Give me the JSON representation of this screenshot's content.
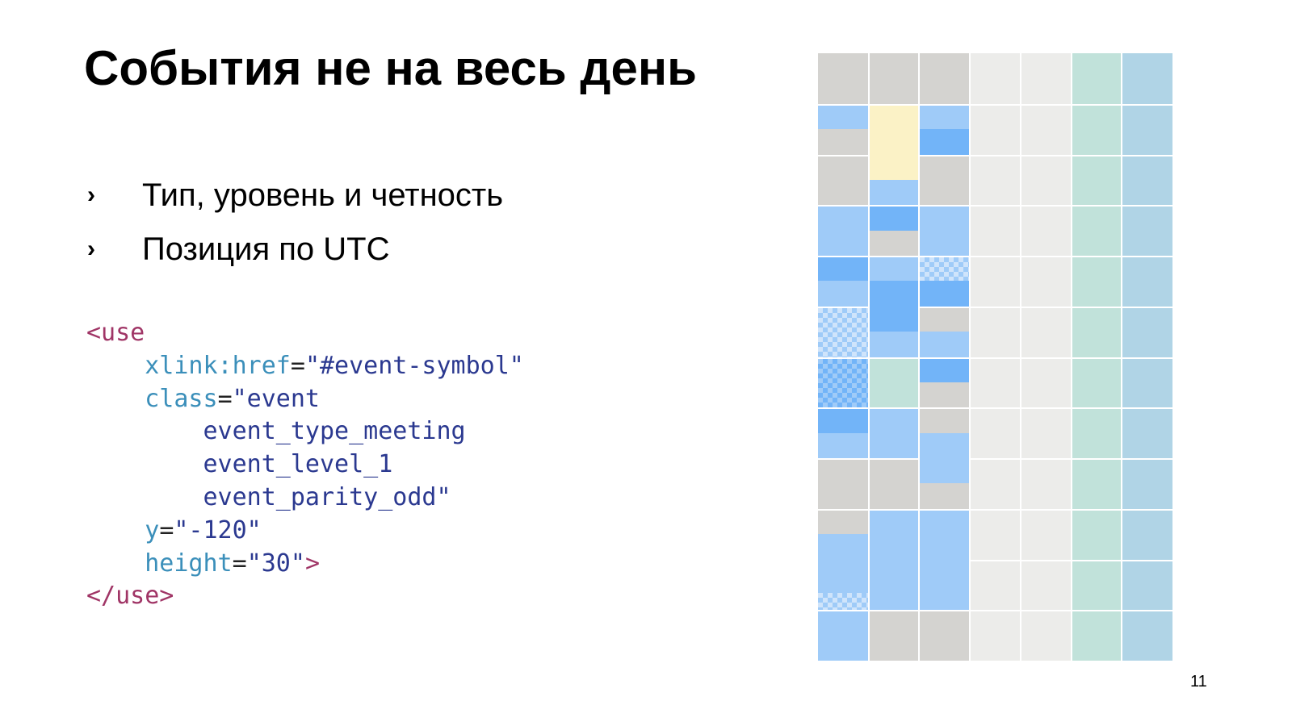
{
  "title": "События не на весь день",
  "bullets": [
    {
      "marker": "›",
      "text": "Тип, уровень и четность"
    },
    {
      "marker": "›",
      "text": "Позиция по UTC"
    }
  ],
  "code": {
    "open_tag": "<use",
    "href_attr": "xlink:href",
    "href_value": "\"#event-symbol\"",
    "class_attr": "class",
    "class_value_1": "\"event",
    "class_value_2": "event_type_meeting",
    "class_value_3": "event_level_1",
    "class_value_4": "event_parity_odd\"",
    "y_attr": "y",
    "y_value": "\"-120\"",
    "height_attr": "height",
    "height_value": "\"30\"",
    "open_tag_end": ">",
    "close_tag": "</use>",
    "equals": "="
  },
  "page_number": "11",
  "calendar": {
    "colors": {
      "busy_gray": "#d4d3d0",
      "event_light_blue": "#9fcbf8",
      "event_dark_blue": "#72b4f8",
      "event_yellow": "#fbf2c6",
      "event_green": "#c1e2da",
      "empty_day": "#ececea",
      "weekend_green": "#c1e2da",
      "weekend_blue": "#b0d4e6",
      "grid_line": "#ffffff"
    }
  }
}
